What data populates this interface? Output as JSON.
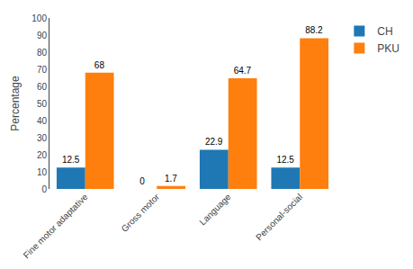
{
  "chart_data": {
    "type": "bar",
    "categories": [
      "Fine motor adaptative",
      "Gross motor",
      "Language",
      "Personal-social"
    ],
    "series": [
      {
        "name": "CH",
        "values": [
          12.5,
          0,
          22.9,
          12.5
        ]
      },
      {
        "name": "PKU",
        "values": [
          68,
          1.7,
          64.7,
          88.2
        ]
      }
    ],
    "ylabel": "Percentage",
    "ylim": [
      0,
      100
    ],
    "yticks": [
      0,
      10,
      20,
      30,
      40,
      50,
      60,
      70,
      80,
      90,
      100
    ],
    "grid": false,
    "legend": "right",
    "data_labels": true
  }
}
